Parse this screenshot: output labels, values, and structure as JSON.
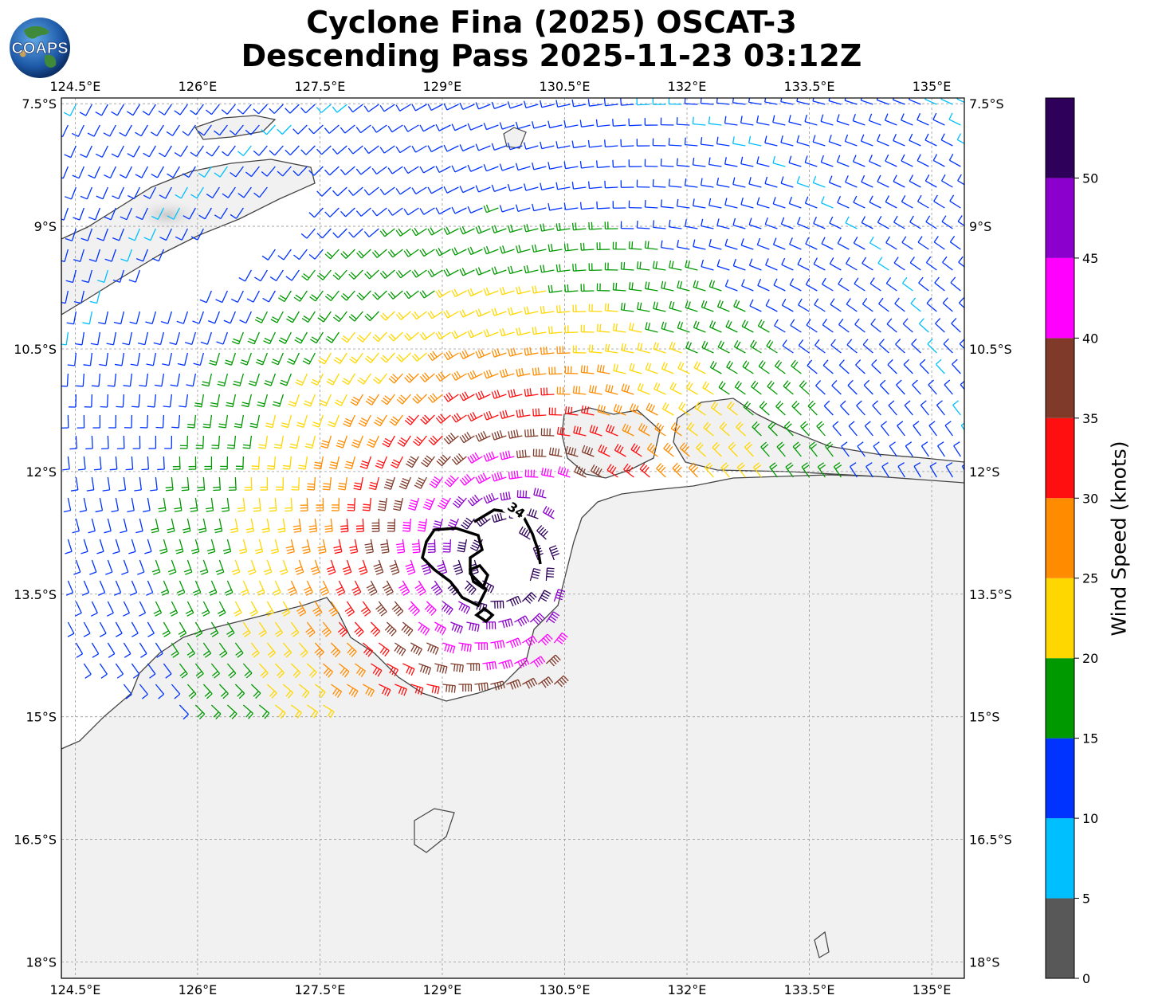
{
  "title": {
    "line1": "Cyclone Fina (2025) OSCAT-3",
    "line2": "Descending Pass 2025-11-23 03:12Z"
  },
  "logo": {
    "text": "COAPS",
    "icon": "globe-icon"
  },
  "map": {
    "lon_range": [
      124.33,
      135.4
    ],
    "lat_range": [
      -18.2,
      -7.43
    ],
    "lon_ticks": [
      "124.5°E",
      "126°E",
      "127.5°E",
      "129°E",
      "130.5°E",
      "132°E",
      "133.5°E",
      "135°E"
    ],
    "lon_tick_values": [
      124.5,
      126,
      127.5,
      129,
      130.5,
      132,
      133.5,
      135
    ],
    "lat_ticks": [
      "7.5°S",
      "9°S",
      "10.5°S",
      "12°S",
      "13.5°S",
      "15°S",
      "16.5°S",
      "18°S"
    ],
    "lat_tick_values": [
      -7.5,
      -9,
      -10.5,
      -12,
      -13.5,
      -15,
      -16.5,
      -18
    ],
    "gridlines": true,
    "land_color": "#f2f2f2",
    "coast_color": "#333333",
    "cyclone_center": {
      "lon": 129.75,
      "lat": -13.1
    },
    "contour_label": "34"
  },
  "colorbar": {
    "label": "Wind Speed (knots)",
    "ticks": [
      "0",
      "5",
      "10",
      "15",
      "20",
      "25",
      "30",
      "35",
      "40",
      "45",
      "50"
    ],
    "tick_values": [
      0,
      5,
      10,
      15,
      20,
      25,
      30,
      35,
      40,
      45,
      50
    ],
    "range": [
      0,
      55
    ],
    "bins": [
      {
        "from": 0,
        "to": 5,
        "color": "#585858"
      },
      {
        "from": 5,
        "to": 10,
        "color": "#00bfff"
      },
      {
        "from": 10,
        "to": 15,
        "color": "#0033ff"
      },
      {
        "from": 15,
        "to": 20,
        "color": "#009900"
      },
      {
        "from": 20,
        "to": 25,
        "color": "#ffd700"
      },
      {
        "from": 25,
        "to": 30,
        "color": "#ff8c00"
      },
      {
        "from": 30,
        "to": 35,
        "color": "#ff0f0f"
      },
      {
        "from": 35,
        "to": 40,
        "color": "#7f3a2a"
      },
      {
        "from": 40,
        "to": 45,
        "color": "#ff00ff"
      },
      {
        "from": 45,
        "to": 50,
        "color": "#8b00cc"
      },
      {
        "from": 50,
        "to": 55,
        "color": "#2e0059"
      }
    ]
  }
}
